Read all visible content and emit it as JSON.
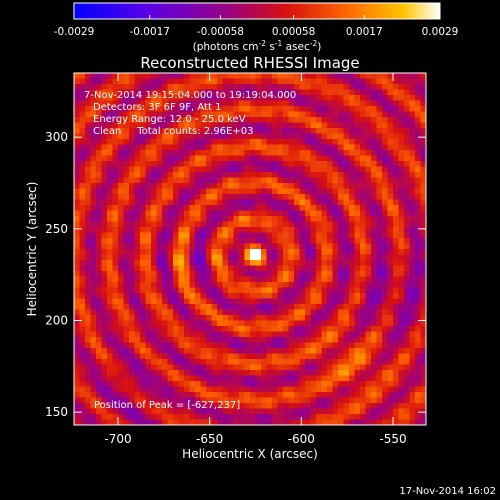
{
  "colorbar": {
    "ticks": [
      "-0.0029",
      "-0.0017",
      "-0.00058",
      "0.00058",
      "0.0017",
      "0.0029"
    ],
    "unit_parts": [
      "(photons cm",
      "-2",
      " s",
      "-1",
      " asec",
      "-2",
      ")"
    ],
    "min": -0.0029,
    "max": 0.0029
  },
  "chart_data": {
    "type": "heatmap",
    "title": "Reconstructed RHESSI Image",
    "xlabel": "Heliocentric X (arcsec)",
    "ylabel": "Heliocentric Y (arcsec)",
    "xlim": [
      -724,
      -532
    ],
    "ylim": [
      143,
      335
    ],
    "x_ticks": [
      "-700",
      "-650",
      "-600",
      "-550"
    ],
    "y_ticks": [
      "150",
      "200",
      "250",
      "300"
    ],
    "annotations": [
      "7-Nov-2014 19:15:04.000 to 19:19:04.000",
      "Detectors: 3F 6F 9F, Att 1",
      "Energy Range: 12.0 - 25.0 keV",
      "Clean     Total counts: 2.96E+03"
    ],
    "peak_label": "Position of Peak = [-627,237]",
    "peak_position": [
      -627,
      237
    ]
  },
  "timestamp": "17-Nov-2014 16:02"
}
